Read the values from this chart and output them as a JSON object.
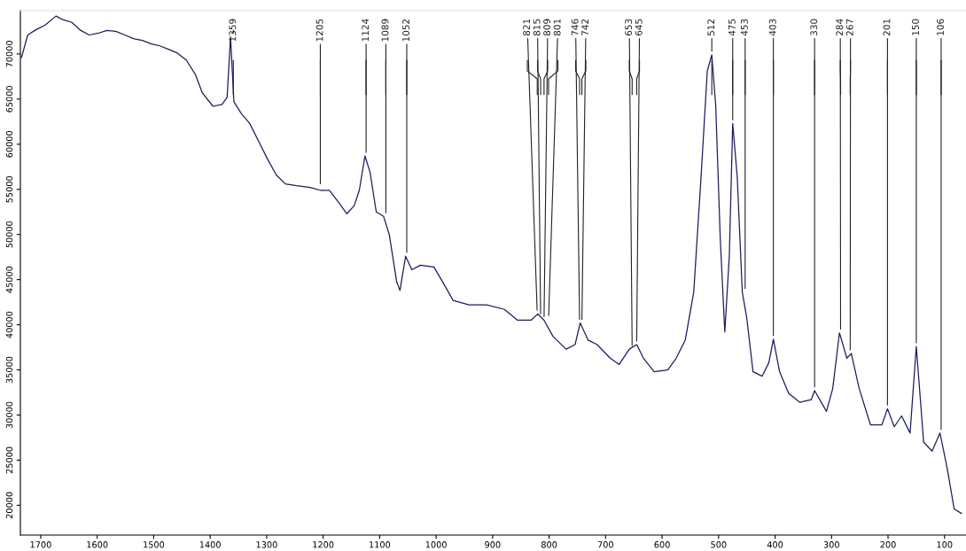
{
  "chart_data": {
    "type": "line",
    "x": [
      1734,
      1723,
      1708,
      1692,
      1673,
      1661,
      1645,
      1629,
      1614,
      1598,
      1583,
      1567,
      1551,
      1536,
      1520,
      1504,
      1489,
      1473,
      1458,
      1442,
      1426,
      1414,
      1395,
      1379,
      1370,
      1364,
      1358,
      1345,
      1330,
      1314,
      1298,
      1283,
      1267,
      1247,
      1223,
      1205,
      1189,
      1173,
      1158,
      1145,
      1136,
      1126,
      1117,
      1106,
      1093,
      1083,
      1070,
      1064,
      1054,
      1043,
      1028,
      1004,
      989,
      970,
      942,
      911,
      879,
      856,
      832,
      820,
      809,
      793,
      770,
      754,
      745,
      731,
      715,
      692,
      676,
      658,
      645,
      633,
      614,
      590,
      575,
      559,
      544,
      531,
      520,
      512,
      505,
      497,
      489,
      481,
      475,
      467,
      458,
      450,
      439,
      423,
      411,
      403,
      392,
      376,
      356,
      336,
      330,
      309,
      298,
      286,
      273,
      265,
      251,
      231,
      211,
      201,
      189,
      176,
      161,
      150,
      137,
      122,
      108,
      95,
      83,
      70
    ],
    "series": [
      {
        "color": "#1c1c5c",
        "values": [
          69600,
          72100,
          72700,
          73200,
          74200,
          73800,
          73500,
          72600,
          72100,
          72300,
          72600,
          72500,
          72100,
          71700,
          71500,
          71100,
          70900,
          70500,
          70100,
          69300,
          67700,
          65700,
          64200,
          64400,
          65200,
          71900,
          64700,
          63400,
          62300,
          60300,
          58300,
          56600,
          55600,
          55400,
          55200,
          54900,
          54900,
          53600,
          52300,
          53200,
          54900,
          58700,
          56900,
          52500,
          52000,
          50000,
          44800,
          43800,
          47600,
          46100,
          46600,
          46400,
          44800,
          42700,
          42200,
          42200,
          41700,
          40500,
          40500,
          41200,
          40500,
          38700,
          37300,
          37800,
          40200,
          38300,
          37800,
          36300,
          35600,
          37300,
          37800,
          36300,
          34800,
          35000,
          36300,
          38300,
          43600,
          56400,
          68100,
          69900,
          64200,
          49500,
          39200,
          47600,
          62300,
          56400,
          43600,
          40700,
          34800,
          34300,
          35800,
          38400,
          34800,
          32400,
          31400,
          31700,
          32700,
          30400,
          32900,
          39100,
          36300,
          36800,
          32900,
          28900,
          28900,
          30700,
          28700,
          29900,
          28000,
          37600,
          27000,
          26000,
          28000,
          24000,
          19600,
          19100
        ]
      }
    ],
    "xlim": [
      1736,
      62
    ],
    "xticks": [
      1700,
      1600,
      1500,
      1400,
      1300,
      1200,
      1100,
      1000,
      900,
      800,
      700,
      600,
      500,
      400,
      300,
      200,
      100
    ],
    "ylim": [
      16700,
      74800
    ],
    "yticks": [
      20000,
      25000,
      30000,
      35000,
      40000,
      45000,
      50000,
      55000,
      60000,
      65000,
      70000
    ],
    "grid": false,
    "marker": "none",
    "line_style": "solid",
    "annotations": [
      {
        "text": "1359",
        "x": 1359,
        "y": 71900
      },
      {
        "text": "1205",
        "x": 1205,
        "y": 55200
      },
      {
        "text": "1124",
        "x": 1124,
        "y": 58700
      },
      {
        "text": "1089",
        "x": 1089,
        "y": 52000
      },
      {
        "text": "1052",
        "x": 1052,
        "y": 47600
      },
      {
        "text": "821",
        "x": 821,
        "y": 41200
      },
      {
        "text": "815",
        "x": 815,
        "y": 40800
      },
      {
        "text": "809",
        "x": 809,
        "y": 40500
      },
      {
        "text": "801",
        "x": 801,
        "y": 40600
      },
      {
        "text": "746",
        "x": 746,
        "y": 40200
      },
      {
        "text": "742",
        "x": 742,
        "y": 40200
      },
      {
        "text": "653",
        "x": 653,
        "y": 37300
      },
      {
        "text": "645",
        "x": 645,
        "y": 37800
      },
      {
        "text": "512",
        "x": 512,
        "y": 69900
      },
      {
        "text": "475",
        "x": 475,
        "y": 62300
      },
      {
        "text": "453",
        "x": 453,
        "y": 43600
      },
      {
        "text": "403",
        "x": 403,
        "y": 38400
      },
      {
        "text": "330",
        "x": 330,
        "y": 32700
      },
      {
        "text": "284",
        "x": 284,
        "y": 39100
      },
      {
        "text": "267",
        "x": 267,
        "y": 36800
      },
      {
        "text": "201",
        "x": 201,
        "y": 30700
      },
      {
        "text": "150",
        "x": 150,
        "y": 37600
      },
      {
        "text": "106",
        "x": 106,
        "y": 28000
      }
    ]
  }
}
